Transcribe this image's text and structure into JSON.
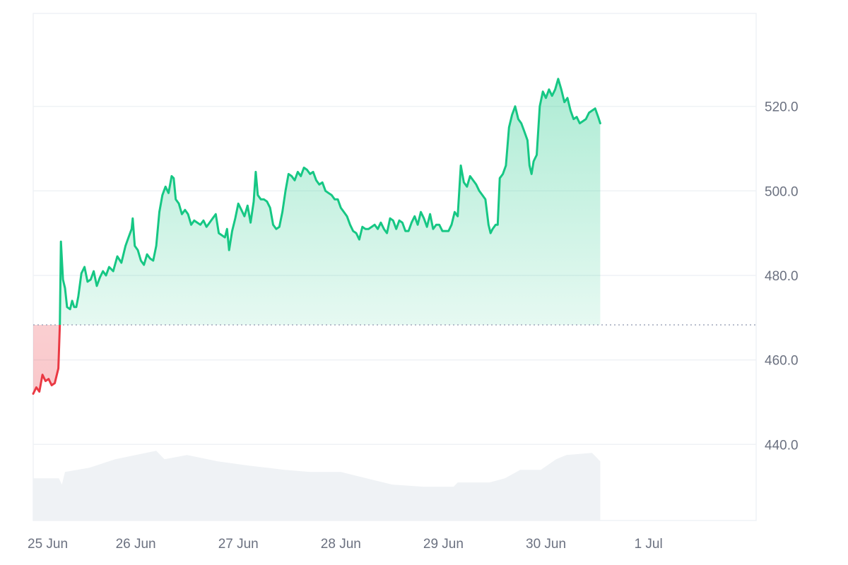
{
  "chart_data": {
    "type": "area",
    "title": "",
    "xlabel": "",
    "ylabel": "",
    "x_ticks": [
      "25 Jun",
      "26 Jun",
      "27 Jun",
      "28 Jun",
      "29 Jun",
      "30 Jun",
      "1 Jul"
    ],
    "y_ticks": [
      "440.0",
      "460.0",
      "480.0",
      "500.0",
      "520.0"
    ],
    "x_range_days": [
      0,
      7.05
    ],
    "ylim": [
      422,
      542
    ],
    "baseline": 468.3,
    "grid": true,
    "colors": {
      "up_line": "#16c784",
      "down_line": "#ea3943",
      "up_fill": "#16c784",
      "down_fill": "#ea3943",
      "volume": "#eff2f5",
      "grid": "#eff2f5",
      "baseline": "#a1a7bb",
      "axis_text": "#6b7180"
    },
    "series": [
      {
        "values": [
          [
            0.0,
            452.0
          ],
          [
            0.03,
            453.5
          ],
          [
            0.06,
            452.5
          ],
          [
            0.09,
            456.5
          ],
          [
            0.12,
            455.0
          ],
          [
            0.15,
            455.5
          ],
          [
            0.18,
            454.0
          ],
          [
            0.21,
            454.5
          ],
          [
            0.23,
            456.5
          ],
          [
            0.245,
            458.0
          ],
          [
            0.26,
            468.3
          ],
          [
            0.27,
            488.0
          ],
          [
            0.29,
            479.0
          ],
          [
            0.31,
            477.0
          ],
          [
            0.33,
            472.5
          ],
          [
            0.36,
            472.0
          ],
          [
            0.38,
            474.0
          ],
          [
            0.4,
            472.5
          ],
          [
            0.42,
            472.5
          ],
          [
            0.44,
            475.0
          ],
          [
            0.47,
            480.5
          ],
          [
            0.5,
            482.0
          ],
          [
            0.53,
            478.5
          ],
          [
            0.56,
            479.0
          ],
          [
            0.59,
            481.0
          ],
          [
            0.62,
            477.5
          ],
          [
            0.65,
            479.5
          ],
          [
            0.68,
            481.0
          ],
          [
            0.71,
            480.0
          ],
          [
            0.74,
            482.0
          ],
          [
            0.78,
            481.0
          ],
          [
            0.82,
            484.5
          ],
          [
            0.86,
            483.0
          ],
          [
            0.9,
            487.0
          ],
          [
            0.93,
            489.0
          ],
          [
            0.96,
            491.0
          ],
          [
            0.97,
            493.5
          ],
          [
            0.99,
            487.0
          ],
          [
            1.02,
            486.0
          ],
          [
            1.05,
            483.5
          ],
          [
            1.08,
            482.5
          ],
          [
            1.11,
            485.0
          ],
          [
            1.14,
            484.0
          ],
          [
            1.17,
            483.5
          ],
          [
            1.2,
            487.0
          ],
          [
            1.23,
            495.0
          ],
          [
            1.26,
            499.0
          ],
          [
            1.29,
            501.0
          ],
          [
            1.32,
            499.5
          ],
          [
            1.35,
            503.5
          ],
          [
            1.37,
            503.0
          ],
          [
            1.39,
            498.0
          ],
          [
            1.42,
            497.0
          ],
          [
            1.45,
            494.5
          ],
          [
            1.48,
            495.5
          ],
          [
            1.51,
            494.5
          ],
          [
            1.54,
            492.0
          ],
          [
            1.57,
            493.0
          ],
          [
            1.6,
            492.5
          ],
          [
            1.63,
            492.0
          ],
          [
            1.66,
            493.0
          ],
          [
            1.69,
            491.5
          ],
          [
            1.72,
            492.5
          ],
          [
            1.75,
            493.5
          ],
          [
            1.78,
            494.5
          ],
          [
            1.81,
            490.0
          ],
          [
            1.84,
            489.5
          ],
          [
            1.87,
            489.0
          ],
          [
            1.89,
            491.0
          ],
          [
            1.91,
            486.0
          ],
          [
            1.94,
            490.5
          ],
          [
            1.97,
            493.5
          ],
          [
            2.0,
            497.0
          ],
          [
            2.03,
            495.5
          ],
          [
            2.06,
            494.0
          ],
          [
            2.09,
            496.5
          ],
          [
            2.12,
            492.5
          ],
          [
            2.15,
            497.5
          ],
          [
            2.17,
            504.5
          ],
          [
            2.19,
            499.0
          ],
          [
            2.22,
            498.0
          ],
          [
            2.25,
            498.0
          ],
          [
            2.28,
            497.5
          ],
          [
            2.31,
            496.0
          ],
          [
            2.34,
            492.0
          ],
          [
            2.37,
            491.0
          ],
          [
            2.4,
            491.5
          ],
          [
            2.43,
            495.0
          ],
          [
            2.46,
            500.0
          ],
          [
            2.49,
            504.0
          ],
          [
            2.52,
            503.5
          ],
          [
            2.55,
            502.5
          ],
          [
            2.58,
            504.5
          ],
          [
            2.61,
            503.5
          ],
          [
            2.64,
            505.5
          ],
          [
            2.67,
            505.0
          ],
          [
            2.7,
            504.0
          ],
          [
            2.73,
            504.5
          ],
          [
            2.76,
            502.5
          ],
          [
            2.79,
            501.5
          ],
          [
            2.82,
            502.0
          ],
          [
            2.85,
            500.0
          ],
          [
            2.88,
            499.5
          ],
          [
            2.91,
            499.0
          ],
          [
            2.94,
            498.0
          ],
          [
            2.97,
            498.0
          ],
          [
            3.0,
            496.0
          ],
          [
            3.03,
            495.0
          ],
          [
            3.06,
            494.0
          ],
          [
            3.09,
            492.0
          ],
          [
            3.12,
            490.5
          ],
          [
            3.15,
            490.0
          ],
          [
            3.18,
            488.5
          ],
          [
            3.21,
            491.5
          ],
          [
            3.24,
            491.0
          ],
          [
            3.27,
            491.0
          ],
          [
            3.3,
            491.5
          ],
          [
            3.33,
            492.0
          ],
          [
            3.36,
            491.0
          ],
          [
            3.39,
            492.5
          ],
          [
            3.42,
            491.0
          ],
          [
            3.45,
            490.0
          ],
          [
            3.48,
            493.5
          ],
          [
            3.51,
            493.0
          ],
          [
            3.54,
            491.0
          ],
          [
            3.57,
            493.0
          ],
          [
            3.6,
            492.5
          ],
          [
            3.63,
            490.5
          ],
          [
            3.66,
            490.5
          ],
          [
            3.69,
            492.5
          ],
          [
            3.72,
            494.0
          ],
          [
            3.75,
            492.0
          ],
          [
            3.78,
            495.0
          ],
          [
            3.81,
            493.5
          ],
          [
            3.84,
            491.5
          ],
          [
            3.87,
            494.5
          ],
          [
            3.9,
            491.0
          ],
          [
            3.93,
            492.0
          ],
          [
            3.96,
            492.0
          ],
          [
            3.99,
            490.5
          ],
          [
            4.02,
            490.5
          ],
          [
            4.05,
            490.5
          ],
          [
            4.08,
            492.0
          ],
          [
            4.11,
            495.0
          ],
          [
            4.14,
            494.0
          ],
          [
            4.17,
            506.0
          ],
          [
            4.2,
            502.0
          ],
          [
            4.23,
            501.0
          ],
          [
            4.26,
            503.5
          ],
          [
            4.29,
            502.5
          ],
          [
            4.32,
            501.5
          ],
          [
            4.35,
            500.0
          ],
          [
            4.38,
            499.0
          ],
          [
            4.41,
            498.0
          ],
          [
            4.44,
            492.0
          ],
          [
            4.46,
            490.0
          ],
          [
            4.48,
            491.0
          ],
          [
            4.51,
            492.0
          ],
          [
            4.53,
            492.0
          ],
          [
            4.55,
            503.0
          ],
          [
            4.58,
            504.0
          ],
          [
            4.61,
            506.0
          ],
          [
            4.64,
            515.0
          ],
          [
            4.67,
            518.0
          ],
          [
            4.7,
            520.0
          ],
          [
            4.73,
            517.0
          ],
          [
            4.76,
            516.0
          ],
          [
            4.79,
            514.0
          ],
          [
            4.82,
            512.0
          ],
          [
            4.84,
            506.0
          ],
          [
            4.86,
            504.0
          ],
          [
            4.88,
            507.0
          ],
          [
            4.91,
            508.5
          ],
          [
            4.94,
            520.0
          ],
          [
            4.97,
            523.5
          ],
          [
            5.0,
            522.0
          ],
          [
            5.03,
            524.0
          ],
          [
            5.06,
            522.5
          ],
          [
            5.09,
            524.0
          ],
          [
            5.12,
            526.5
          ],
          [
            5.15,
            524.0
          ],
          [
            5.18,
            521.0
          ],
          [
            5.21,
            522.0
          ],
          [
            5.24,
            519.0
          ],
          [
            5.27,
            517.0
          ],
          [
            5.3,
            517.5
          ],
          [
            5.33,
            516.0
          ],
          [
            5.36,
            516.5
          ],
          [
            5.39,
            517.0
          ],
          [
            5.42,
            518.5
          ],
          [
            5.45,
            519.0
          ],
          [
            5.48,
            519.5
          ],
          [
            5.51,
            517.5
          ],
          [
            5.53,
            516.0
          ]
        ]
      }
    ],
    "volume": [
      [
        0.0,
        432
      ],
      [
        0.25,
        432
      ],
      [
        0.28,
        430.5
      ],
      [
        0.31,
        433.5
      ],
      [
        0.55,
        434.5
      ],
      [
        0.8,
        436.5
      ],
      [
        1.2,
        438.5
      ],
      [
        1.28,
        436.5
      ],
      [
        1.5,
        437.5
      ],
      [
        1.8,
        436
      ],
      [
        2.1,
        435
      ],
      [
        2.45,
        434
      ],
      [
        2.7,
        433.5
      ],
      [
        3.0,
        433.5
      ],
      [
        3.25,
        432
      ],
      [
        3.5,
        430.5
      ],
      [
        3.8,
        430
      ],
      [
        4.1,
        430
      ],
      [
        4.14,
        431
      ],
      [
        4.45,
        431
      ],
      [
        4.6,
        432
      ],
      [
        4.75,
        434
      ],
      [
        4.95,
        434
      ],
      [
        5.1,
        436.5
      ],
      [
        5.2,
        437.5
      ],
      [
        5.45,
        438
      ],
      [
        5.53,
        436
      ]
    ]
  }
}
